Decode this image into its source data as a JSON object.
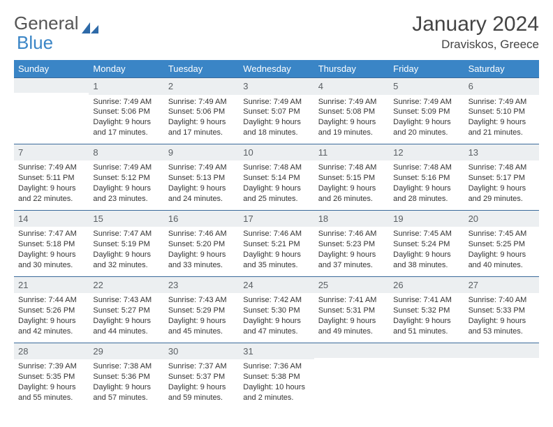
{
  "logo": {
    "word1": "General",
    "word2": "Blue"
  },
  "title": {
    "month": "January 2024",
    "location": "Draviskos, Greece"
  },
  "colors": {
    "header_bg": "#3a85c6",
    "header_text": "#ffffff",
    "daynum_bg": "#eceff1",
    "daynum_border": "#3a6a9a",
    "body_text": "#333333"
  },
  "day_names": [
    "Sunday",
    "Monday",
    "Tuesday",
    "Wednesday",
    "Thursday",
    "Friday",
    "Saturday"
  ],
  "weeks": [
    [
      {
        "n": "",
        "sr": "",
        "ss": "",
        "dl1": "",
        "dl2": ""
      },
      {
        "n": "1",
        "sr": "Sunrise: 7:49 AM",
        "ss": "Sunset: 5:06 PM",
        "dl1": "Daylight: 9 hours",
        "dl2": "and 17 minutes."
      },
      {
        "n": "2",
        "sr": "Sunrise: 7:49 AM",
        "ss": "Sunset: 5:06 PM",
        "dl1": "Daylight: 9 hours",
        "dl2": "and 17 minutes."
      },
      {
        "n": "3",
        "sr": "Sunrise: 7:49 AM",
        "ss": "Sunset: 5:07 PM",
        "dl1": "Daylight: 9 hours",
        "dl2": "and 18 minutes."
      },
      {
        "n": "4",
        "sr": "Sunrise: 7:49 AM",
        "ss": "Sunset: 5:08 PM",
        "dl1": "Daylight: 9 hours",
        "dl2": "and 19 minutes."
      },
      {
        "n": "5",
        "sr": "Sunrise: 7:49 AM",
        "ss": "Sunset: 5:09 PM",
        "dl1": "Daylight: 9 hours",
        "dl2": "and 20 minutes."
      },
      {
        "n": "6",
        "sr": "Sunrise: 7:49 AM",
        "ss": "Sunset: 5:10 PM",
        "dl1": "Daylight: 9 hours",
        "dl2": "and 21 minutes."
      }
    ],
    [
      {
        "n": "7",
        "sr": "Sunrise: 7:49 AM",
        "ss": "Sunset: 5:11 PM",
        "dl1": "Daylight: 9 hours",
        "dl2": "and 22 minutes."
      },
      {
        "n": "8",
        "sr": "Sunrise: 7:49 AM",
        "ss": "Sunset: 5:12 PM",
        "dl1": "Daylight: 9 hours",
        "dl2": "and 23 minutes."
      },
      {
        "n": "9",
        "sr": "Sunrise: 7:49 AM",
        "ss": "Sunset: 5:13 PM",
        "dl1": "Daylight: 9 hours",
        "dl2": "and 24 minutes."
      },
      {
        "n": "10",
        "sr": "Sunrise: 7:48 AM",
        "ss": "Sunset: 5:14 PM",
        "dl1": "Daylight: 9 hours",
        "dl2": "and 25 minutes."
      },
      {
        "n": "11",
        "sr": "Sunrise: 7:48 AM",
        "ss": "Sunset: 5:15 PM",
        "dl1": "Daylight: 9 hours",
        "dl2": "and 26 minutes."
      },
      {
        "n": "12",
        "sr": "Sunrise: 7:48 AM",
        "ss": "Sunset: 5:16 PM",
        "dl1": "Daylight: 9 hours",
        "dl2": "and 28 minutes."
      },
      {
        "n": "13",
        "sr": "Sunrise: 7:48 AM",
        "ss": "Sunset: 5:17 PM",
        "dl1": "Daylight: 9 hours",
        "dl2": "and 29 minutes."
      }
    ],
    [
      {
        "n": "14",
        "sr": "Sunrise: 7:47 AM",
        "ss": "Sunset: 5:18 PM",
        "dl1": "Daylight: 9 hours",
        "dl2": "and 30 minutes."
      },
      {
        "n": "15",
        "sr": "Sunrise: 7:47 AM",
        "ss": "Sunset: 5:19 PM",
        "dl1": "Daylight: 9 hours",
        "dl2": "and 32 minutes."
      },
      {
        "n": "16",
        "sr": "Sunrise: 7:46 AM",
        "ss": "Sunset: 5:20 PM",
        "dl1": "Daylight: 9 hours",
        "dl2": "and 33 minutes."
      },
      {
        "n": "17",
        "sr": "Sunrise: 7:46 AM",
        "ss": "Sunset: 5:21 PM",
        "dl1": "Daylight: 9 hours",
        "dl2": "and 35 minutes."
      },
      {
        "n": "18",
        "sr": "Sunrise: 7:46 AM",
        "ss": "Sunset: 5:23 PM",
        "dl1": "Daylight: 9 hours",
        "dl2": "and 37 minutes."
      },
      {
        "n": "19",
        "sr": "Sunrise: 7:45 AM",
        "ss": "Sunset: 5:24 PM",
        "dl1": "Daylight: 9 hours",
        "dl2": "and 38 minutes."
      },
      {
        "n": "20",
        "sr": "Sunrise: 7:45 AM",
        "ss": "Sunset: 5:25 PM",
        "dl1": "Daylight: 9 hours",
        "dl2": "and 40 minutes."
      }
    ],
    [
      {
        "n": "21",
        "sr": "Sunrise: 7:44 AM",
        "ss": "Sunset: 5:26 PM",
        "dl1": "Daylight: 9 hours",
        "dl2": "and 42 minutes."
      },
      {
        "n": "22",
        "sr": "Sunrise: 7:43 AM",
        "ss": "Sunset: 5:27 PM",
        "dl1": "Daylight: 9 hours",
        "dl2": "and 44 minutes."
      },
      {
        "n": "23",
        "sr": "Sunrise: 7:43 AM",
        "ss": "Sunset: 5:29 PM",
        "dl1": "Daylight: 9 hours",
        "dl2": "and 45 minutes."
      },
      {
        "n": "24",
        "sr": "Sunrise: 7:42 AM",
        "ss": "Sunset: 5:30 PM",
        "dl1": "Daylight: 9 hours",
        "dl2": "and 47 minutes."
      },
      {
        "n": "25",
        "sr": "Sunrise: 7:41 AM",
        "ss": "Sunset: 5:31 PM",
        "dl1": "Daylight: 9 hours",
        "dl2": "and 49 minutes."
      },
      {
        "n": "26",
        "sr": "Sunrise: 7:41 AM",
        "ss": "Sunset: 5:32 PM",
        "dl1": "Daylight: 9 hours",
        "dl2": "and 51 minutes."
      },
      {
        "n": "27",
        "sr": "Sunrise: 7:40 AM",
        "ss": "Sunset: 5:33 PM",
        "dl1": "Daylight: 9 hours",
        "dl2": "and 53 minutes."
      }
    ],
    [
      {
        "n": "28",
        "sr": "Sunrise: 7:39 AM",
        "ss": "Sunset: 5:35 PM",
        "dl1": "Daylight: 9 hours",
        "dl2": "and 55 minutes."
      },
      {
        "n": "29",
        "sr": "Sunrise: 7:38 AM",
        "ss": "Sunset: 5:36 PM",
        "dl1": "Daylight: 9 hours",
        "dl2": "and 57 minutes."
      },
      {
        "n": "30",
        "sr": "Sunrise: 7:37 AM",
        "ss": "Sunset: 5:37 PM",
        "dl1": "Daylight: 9 hours",
        "dl2": "and 59 minutes."
      },
      {
        "n": "31",
        "sr": "Sunrise: 7:36 AM",
        "ss": "Sunset: 5:38 PM",
        "dl1": "Daylight: 10 hours",
        "dl2": "and 2 minutes."
      },
      {
        "n": "",
        "sr": "",
        "ss": "",
        "dl1": "",
        "dl2": ""
      },
      {
        "n": "",
        "sr": "",
        "ss": "",
        "dl1": "",
        "dl2": ""
      },
      {
        "n": "",
        "sr": "",
        "ss": "",
        "dl1": "",
        "dl2": ""
      }
    ]
  ]
}
